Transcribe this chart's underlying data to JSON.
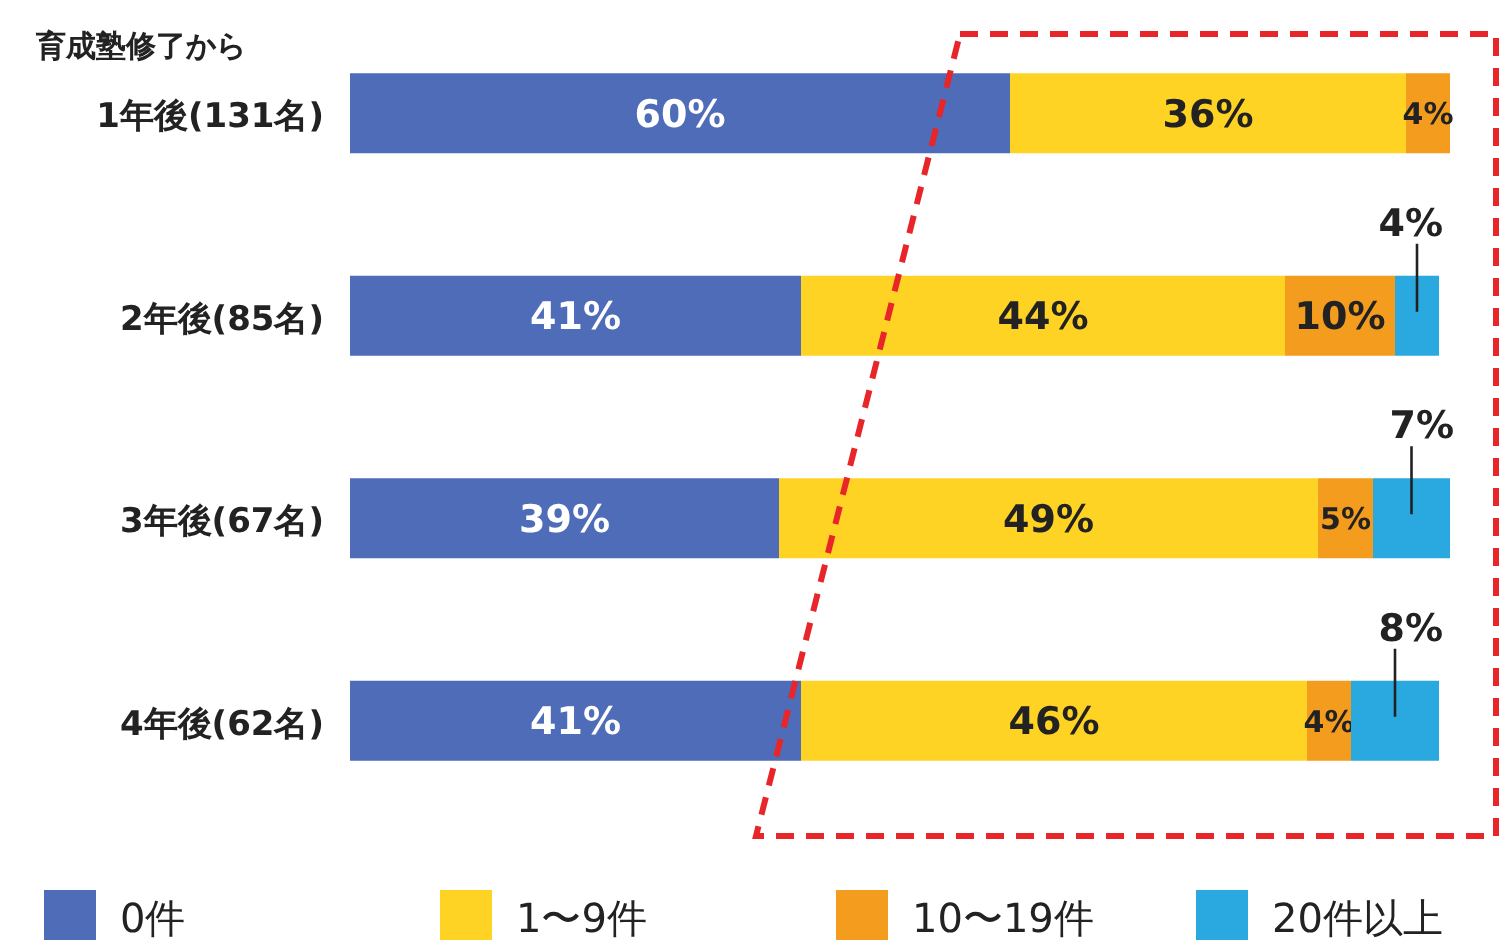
{
  "chart_data": {
    "type": "bar",
    "orientation": "horizontal",
    "stacked": true,
    "ylabel": "育成塾修了から",
    "categories": [
      "1年後(131名)",
      "2年後(85名)",
      "3年後(67名)",
      "4年後(62名)"
    ],
    "series": [
      {
        "name": "0件",
        "color": "#4f6cb8",
        "values": [
          60,
          41,
          39,
          41
        ],
        "value_labels": [
          "60%",
          "41%",
          "39%",
          "41%"
        ]
      },
      {
        "name": "1〜9件",
        "color": "#ffd324",
        "values": [
          36,
          44,
          49,
          46
        ],
        "value_labels": [
          "36%",
          "44%",
          "49%",
          "46%"
        ]
      },
      {
        "name": "10〜19件",
        "color": "#f39c1e",
        "values": [
          4,
          10,
          5,
          4
        ],
        "value_labels": [
          "4%",
          "10%",
          "5%",
          "4%"
        ]
      },
      {
        "name": "20件以上",
        "color": "#29a9e0",
        "values": [
          null,
          4,
          7,
          8
        ],
        "value_labels": [
          null,
          "4%",
          "7%",
          "8%"
        ]
      }
    ],
    "tick_labels": "y",
    "legend": "bottom"
  }
}
